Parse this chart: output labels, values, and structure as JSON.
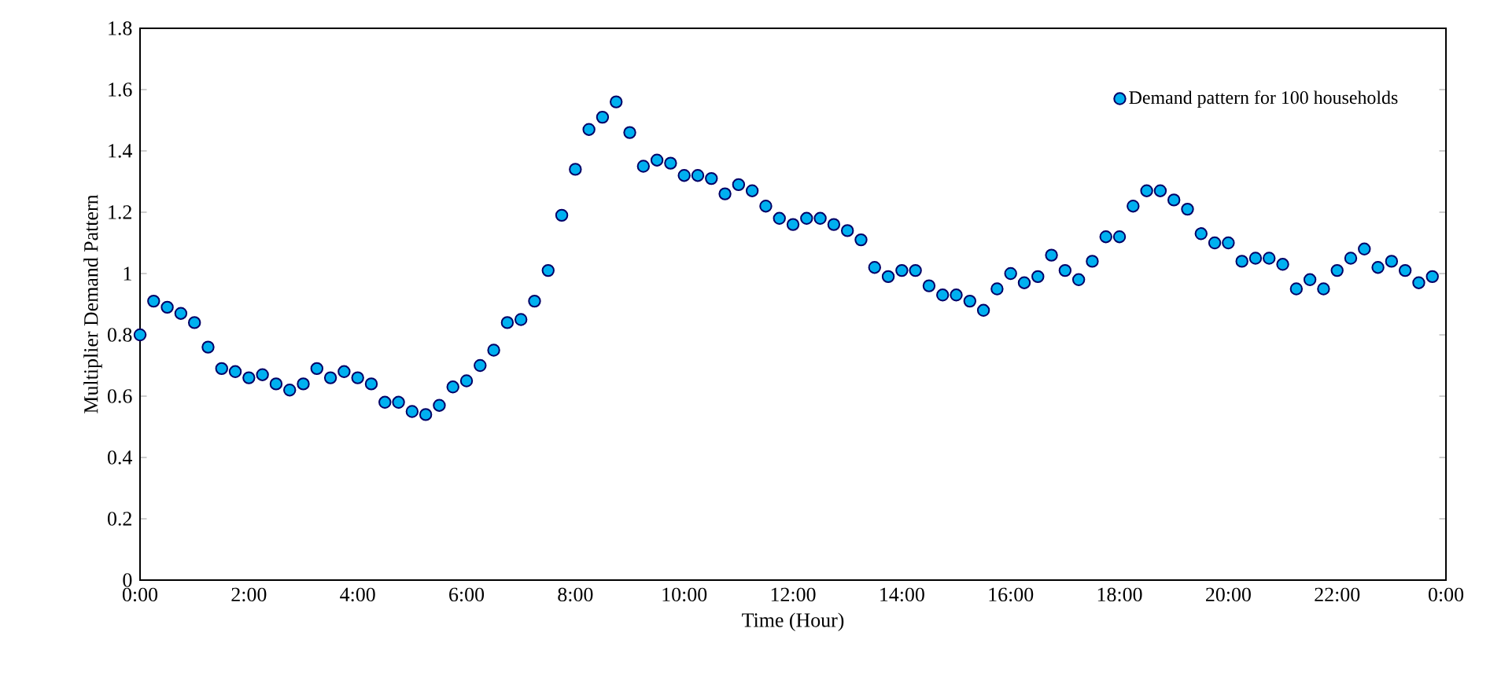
{
  "chart_data": {
    "type": "scatter",
    "xlabel": "Time (Hour)",
    "ylabel": "Multiplier Demand Pattern",
    "x": [
      0,
      0.25,
      0.5,
      0.75,
      1,
      1.25,
      1.5,
      1.75,
      2,
      2.25,
      2.5,
      2.75,
      3,
      3.25,
      3.5,
      3.75,
      4,
      4.25,
      4.5,
      4.75,
      5,
      5.25,
      5.5,
      5.75,
      6,
      6.25,
      6.5,
      6.75,
      7,
      7.25,
      7.5,
      7.75,
      8,
      8.25,
      8.5,
      8.75,
      9,
      9.25,
      9.5,
      9.75,
      10,
      10.25,
      10.5,
      10.75,
      11,
      11.25,
      11.5,
      11.75,
      12,
      12.25,
      12.5,
      12.75,
      13,
      13.25,
      13.5,
      13.75,
      14,
      14.25,
      14.5,
      14.75,
      15,
      15.25,
      15.5,
      15.75,
      16,
      16.25,
      16.5,
      16.75,
      17,
      17.25,
      17.5,
      17.75,
      18,
      18.25,
      18.5,
      18.75,
      19,
      19.25,
      19.5,
      19.75,
      20,
      20.25,
      20.5,
      20.75,
      21,
      21.25,
      21.5,
      21.75,
      22,
      22.25,
      22.5,
      22.75,
      23,
      23.25,
      23.5,
      23.75
    ],
    "series": [
      {
        "name": "Demand pattern for 100 households",
        "color": "#00b0f0",
        "values": [
          0.8,
          0.91,
          0.89,
          0.87,
          0.84,
          0.76,
          0.69,
          0.68,
          0.66,
          0.67,
          0.64,
          0.62,
          0.64,
          0.69,
          0.66,
          0.68,
          0.66,
          0.64,
          0.58,
          0.58,
          0.55,
          0.54,
          0.57,
          0.63,
          0.65,
          0.7,
          0.75,
          0.84,
          0.85,
          0.91,
          1.01,
          1.19,
          1.34,
          1.47,
          1.51,
          1.56,
          1.46,
          1.35,
          1.37,
          1.36,
          1.32,
          1.32,
          1.31,
          1.26,
          1.29,
          1.27,
          1.22,
          1.18,
          1.16,
          1.18,
          1.18,
          1.16,
          1.14,
          1.11,
          1.02,
          0.99,
          1.01,
          1.01,
          0.96,
          0.93,
          0.93,
          0.91,
          0.88,
          0.95,
          1.0,
          0.97,
          0.99,
          1.06,
          1.01,
          0.98,
          1.04,
          1.12,
          1.12,
          1.22,
          1.27,
          1.27,
          1.24,
          1.21,
          1.13,
          1.1,
          1.1,
          1.04,
          1.05,
          1.05,
          1.03,
          0.95,
          0.98,
          0.95,
          1.01,
          1.05,
          1.08,
          1.02,
          1.04,
          1.01,
          0.97,
          0.99
        ]
      }
    ],
    "xlim": [
      0,
      24
    ],
    "xticks": [
      {
        "value": 0,
        "label": "0:00"
      },
      {
        "value": 2,
        "label": "2:00"
      },
      {
        "value": 4,
        "label": "4:00"
      },
      {
        "value": 6,
        "label": "6:00"
      },
      {
        "value": 8,
        "label": "8:00"
      },
      {
        "value": 10,
        "label": "10:00"
      },
      {
        "value": 12,
        "label": "12:00"
      },
      {
        "value": 14,
        "label": "14:00"
      },
      {
        "value": 16,
        "label": "16:00"
      },
      {
        "value": 18,
        "label": "18:00"
      },
      {
        "value": 20,
        "label": "20:00"
      },
      {
        "value": 22,
        "label": "22:00"
      },
      {
        "value": 24,
        "label": "0:00"
      }
    ],
    "ylim": [
      0,
      1.8
    ],
    "yticks": [
      0,
      0.2,
      0.4,
      0.6,
      0.8,
      1,
      1.2,
      1.4,
      1.6,
      1.8
    ],
    "grid": false,
    "legend": "top right"
  }
}
